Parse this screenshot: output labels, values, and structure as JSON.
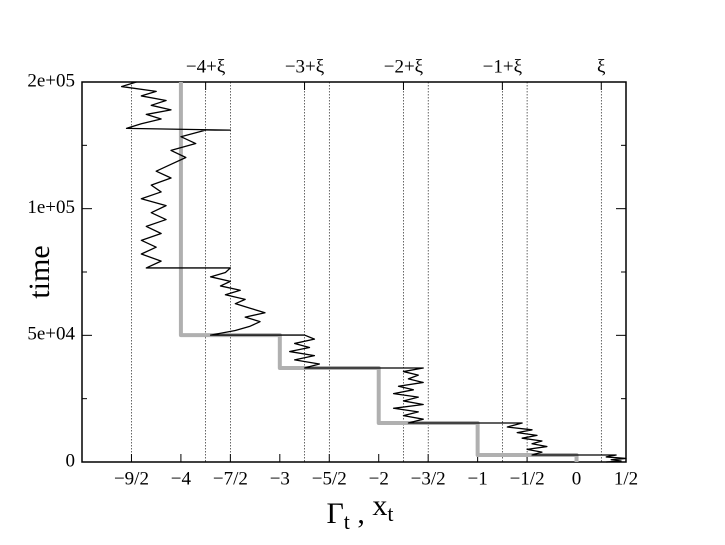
{
  "chart_data": {
    "type": "line",
    "xlabel": [
      "Γ",
      "t",
      " , ",
      "x",
      "t"
    ],
    "ylabel": "time",
    "xlim": [
      -5,
      0.5
    ],
    "ylim": [
      0,
      150000
    ],
    "xticks": [
      {
        "value": -4.5,
        "label": "−9/2"
      },
      {
        "value": -4,
        "label": "−4"
      },
      {
        "value": -3.5,
        "label": "−7/2"
      },
      {
        "value": -3,
        "label": "−3"
      },
      {
        "value": -2.5,
        "label": "−5/2"
      },
      {
        "value": -2,
        "label": "−2"
      },
      {
        "value": -1.5,
        "label": "−3/2"
      },
      {
        "value": -1,
        "label": "−1"
      },
      {
        "value": -0.5,
        "label": "−1/2"
      },
      0,
      {
        "value": 0.5,
        "label": "1/2"
      }
    ],
    "top_ticks": [
      {
        "value": -3.75,
        "label": "−4+ξ"
      },
      {
        "value": -2.75,
        "label": "−3+ξ"
      },
      {
        "value": -1.75,
        "label": "−2+ξ"
      },
      {
        "value": -0.75,
        "label": "−1+ξ"
      },
      {
        "value": 0.25,
        "label": "ξ"
      }
    ],
    "vlines": [
      -4.5,
      -3.5,
      -2.5,
      -1.5,
      -0.5
    ],
    "yticks": [
      0,
      {
        "value": 50000,
        "label": "5e+04"
      },
      {
        "value": 100000,
        "label": "1e+05"
      },
      {
        "value": 150000,
        "label": "2e+05"
      }
    ],
    "yminor": [
      25000,
      75000,
      125000
    ],
    "series": [
      {
        "color": "#b0b0b0",
        "width": 4,
        "x": [
          0,
          0,
          -1,
          -1,
          -2,
          -2,
          -3,
          -3,
          -4,
          -4
        ],
        "values": [
          0,
          2760,
          2760,
          15400,
          15400,
          37100,
          37100,
          50100,
          50100,
          150000
        ]
      },
      {
        "color": "#000000",
        "width": 1.3,
        "x": [
          0.3,
          0.45,
          0.35,
          0.5,
          0.3,
          0.4,
          -0.45,
          -0.35,
          -0.5,
          -0.3,
          -0.45,
          -0.35,
          -0.55,
          -0.4,
          -0.6,
          -0.45,
          -0.7,
          -0.55,
          -1.7,
          -1.55,
          -1.75,
          -1.6,
          -1.85,
          -1.55,
          -1.75,
          -1.6,
          -1.85,
          -1.65,
          -1.8,
          -1.55,
          -1.7,
          -1.6,
          -1.75,
          -1.55,
          -2.75,
          -2.6,
          -2.85,
          -2.65,
          -2.9,
          -2.7,
          -2.85,
          -2.65,
          -2.75,
          -3.7,
          -3.45,
          -3.3,
          -3.2,
          -3.35,
          -3.15,
          -3.3,
          -3.45,
          -3.35,
          -3.55,
          -3.4,
          -3.6,
          -3.5,
          -3.7,
          -3.55,
          -3.5,
          -4.35,
          -4.2,
          -4.4,
          -4.25,
          -4.4,
          -4.2,
          -4.35,
          -4.15,
          -4.3,
          -4.15,
          -4.4,
          -4.2,
          -4.3,
          -4.1,
          -4.25,
          -4.1,
          -3.95,
          -4.1,
          -3.85,
          -4.0,
          -3.75,
          -3.5,
          -4.55,
          -4.4,
          -4.2,
          -4.35,
          -4.1,
          -4.3,
          -4.15,
          -4.4,
          -4.25,
          -4.6,
          -4.45
        ],
        "values": [
          0,
          400,
          900,
          1400,
          2000,
          2760,
          2760,
          3900,
          5000,
          6100,
          7200,
          8300,
          9400,
          10500,
          11600,
          12700,
          13800,
          15400,
          15400,
          16900,
          18300,
          19800,
          21200,
          22700,
          24100,
          25600,
          27000,
          28500,
          29900,
          31400,
          32800,
          34300,
          35700,
          37100,
          37100,
          38700,
          40300,
          42000,
          43600,
          45200,
          46800,
          48500,
          50100,
          50100,
          51900,
          53600,
          55400,
          57200,
          58900,
          60700,
          62500,
          64200,
          66000,
          67800,
          69500,
          71300,
          73100,
          74800,
          76600,
          76600,
          79300,
          82100,
          84800,
          87500,
          90200,
          93000,
          95700,
          98400,
          101200,
          103900,
          106600,
          109300,
          112100,
          114800,
          117500,
          120200,
          123000,
          125700,
          128400,
          131000,
          131000,
          131700,
          133500,
          135400,
          137200,
          139000,
          140800,
          142700,
          144500,
          146300,
          148200,
          150000
        ]
      }
    ]
  }
}
